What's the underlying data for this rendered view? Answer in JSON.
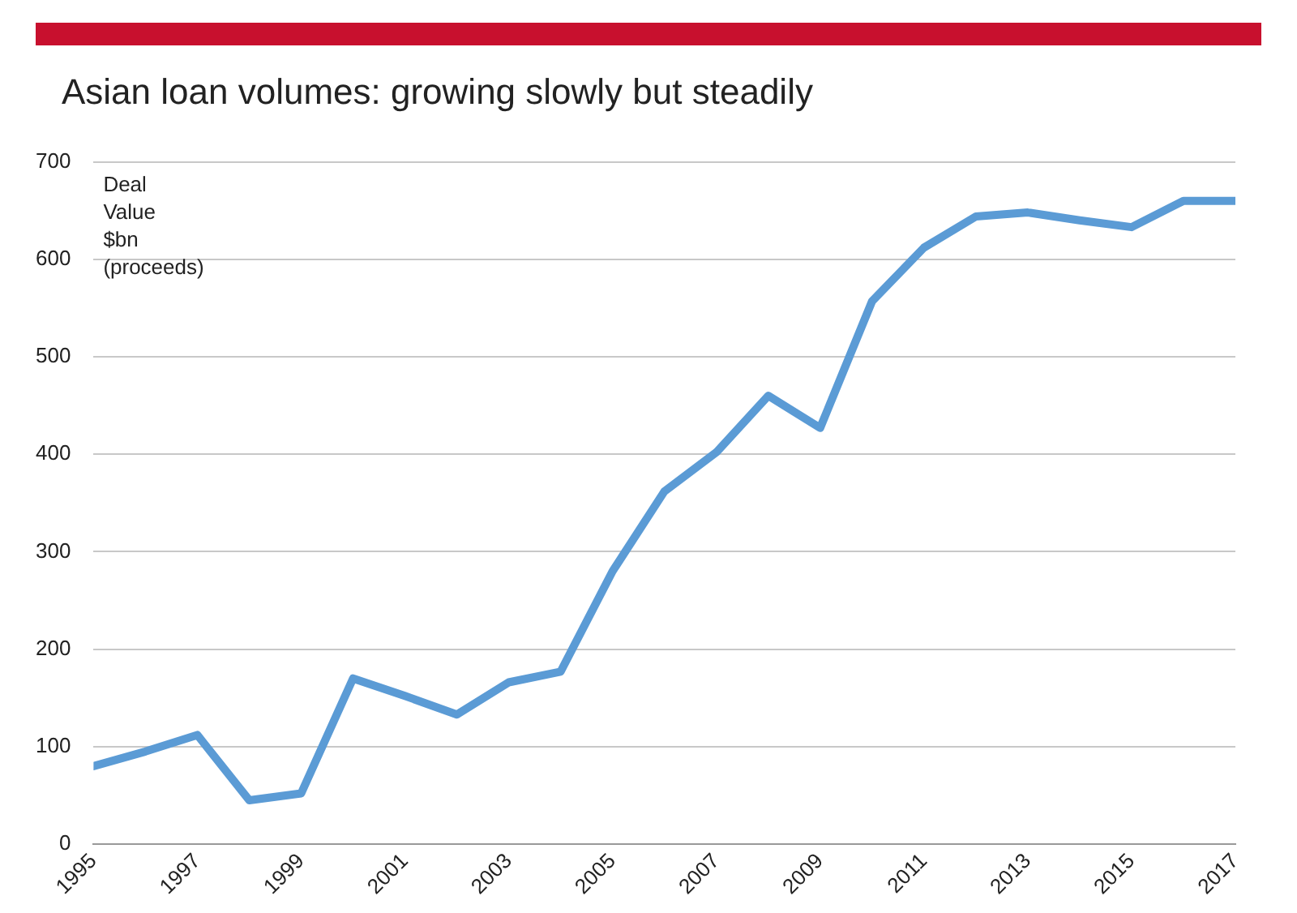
{
  "chart_data": {
    "type": "line",
    "title": "Asian loan volumes: growing slowly but steadily",
    "ylabel": "Deal Value $bn (proceeds)",
    "x": [
      1995,
      1996,
      1997,
      1998,
      1999,
      2000,
      2001,
      2002,
      2003,
      2004,
      2005,
      2006,
      2007,
      2008,
      2009,
      2010,
      2011,
      2012,
      2013,
      2014,
      2015,
      2016,
      2017
    ],
    "series": [
      {
        "color": "#5b9bd5",
        "values": [
          80,
          95,
          112,
          45,
          52,
          170,
          152,
          133,
          166,
          177,
          280,
          362,
          402,
          460,
          427,
          557,
          612,
          644,
          648,
          640,
          633,
          660,
          660
        ]
      }
    ],
    "xlim": [
      1995,
      2017
    ],
    "xticks": [
      1995,
      1997,
      1999,
      2001,
      2003,
      2005,
      2007,
      2009,
      2011,
      2013,
      2015,
      2017
    ],
    "ylim": [
      0,
      700
    ],
    "yticks": [
      0,
      100,
      200,
      300,
      400,
      500,
      600,
      700
    ],
    "grid": "y",
    "legend": false,
    "marker": "none",
    "line_style": "solid"
  }
}
